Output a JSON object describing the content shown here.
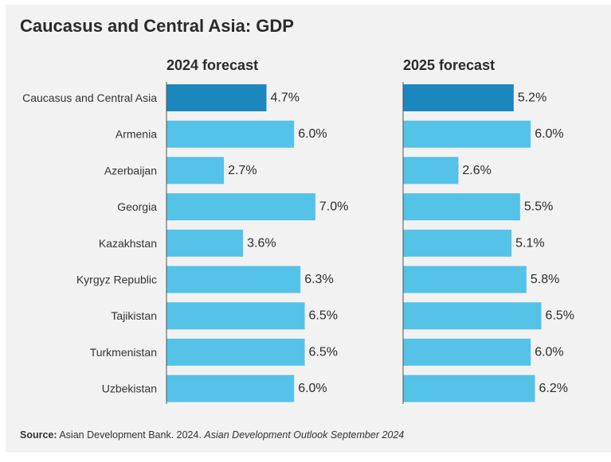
{
  "title": "Caucasus and Central Asia: GDP",
  "source": {
    "label": "Source:",
    "text": "Asian Development Bank. 2024.",
    "publication": "Asian Development Outlook September 2024"
  },
  "colors": {
    "highlight": "#1b87bd",
    "bar": "#55c2e7",
    "axis": "#555555"
  },
  "chart_data": {
    "type": "bar",
    "orientation": "horizontal",
    "title": "Caucasus and Central Asia: GDP",
    "categories": [
      "Caucasus and Central Asia",
      "Armenia",
      "Azerbaijan",
      "Georgia",
      "Kazakhstan",
      "Kyrgyz Republic",
      "Tajikistan",
      "Turkmenistan",
      "Uzbekistan"
    ],
    "highlight_category": "Caucasus and Central Asia",
    "series": [
      {
        "name": "2024 forecast",
        "values": [
          4.7,
          6.0,
          2.7,
          7.0,
          3.6,
          6.3,
          6.5,
          6.5,
          6.0
        ]
      },
      {
        "name": "2025 forecast",
        "values": [
          5.2,
          6.0,
          2.6,
          5.5,
          5.1,
          5.8,
          6.5,
          6.0,
          6.2
        ]
      }
    ],
    "value_suffix": "%",
    "xlim": [
      0,
      7.0
    ]
  }
}
